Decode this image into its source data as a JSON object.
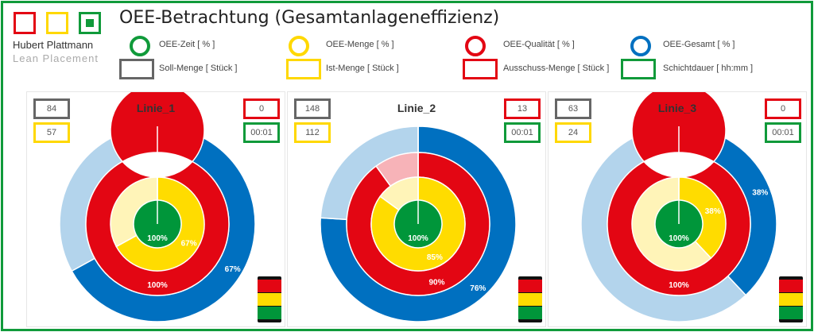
{
  "header": {
    "title": "OEE-Betrachtung (Gesamtanlageneffizienz)",
    "brand_name": "Hubert Plattmann",
    "brand_sub": "Lean Placement",
    "logo_colors": [
      "#e30613",
      "#ffd800",
      "#109a3a"
    ]
  },
  "legend": [
    {
      "shape": "circle",
      "color": "#109a3a",
      "label": "OEE-Zeit [ % ]"
    },
    {
      "shape": "circle",
      "color": "#ffd800",
      "label": "OEE-Menge [ % ]"
    },
    {
      "shape": "circle",
      "color": "#e30613",
      "label": "OEE-Qualität [ % ]"
    },
    {
      "shape": "circle",
      "color": "#0070c0",
      "label": "OEE-Gesamt [ % ]"
    },
    {
      "shape": "rect",
      "color": "#666666",
      "label": "Soll-Menge [ Stück ]"
    },
    {
      "shape": "rect",
      "color": "#ffd800",
      "label": "Ist-Menge [ Stück ]"
    },
    {
      "shape": "rect",
      "color": "#e30613",
      "label": "Ausschuss-Menge [ Stück ]"
    },
    {
      "shape": "rect",
      "color": "#109a3a",
      "label": "Schichtdauer [ hh:mm ]"
    }
  ],
  "colors": {
    "zeit": "#00963a",
    "menge": "#ffdc00",
    "menge_rest": "#fff4b8",
    "qualitaet": "#e30613",
    "qualitaet_rest": "#f7b3b8",
    "gesamt": "#0070c0",
    "gesamt_rest": "#b3d4ec"
  },
  "lines": [
    {
      "name": "Linie_1",
      "soll": "84",
      "ist": "57",
      "ausschuss": "0",
      "dauer": "00:01",
      "zeit": 100,
      "menge": 67,
      "qualitaet": 100,
      "gesamt": 67,
      "labels": {
        "zeit": "100%",
        "menge": "67%",
        "qualitaet": "100%",
        "gesamt": "67%"
      }
    },
    {
      "name": "Linie_2",
      "soll": "148",
      "ist": "112",
      "ausschuss": "13",
      "dauer": "00:01",
      "zeit": 100,
      "menge": 85,
      "qualitaet": 90,
      "gesamt": 76,
      "labels": {
        "zeit": "100%",
        "menge": "85%",
        "qualitaet": "90%",
        "gesamt": "76%"
      }
    },
    {
      "name": "Linie_3",
      "soll": "63",
      "ist": "24",
      "ausschuss": "0",
      "dauer": "00:01",
      "zeit": 100,
      "menge": 38,
      "qualitaet": 100,
      "gesamt": 38,
      "labels": {
        "zeit": "100%",
        "menge": "38%",
        "qualitaet": "100%",
        "gesamt": "38%"
      }
    }
  ]
}
